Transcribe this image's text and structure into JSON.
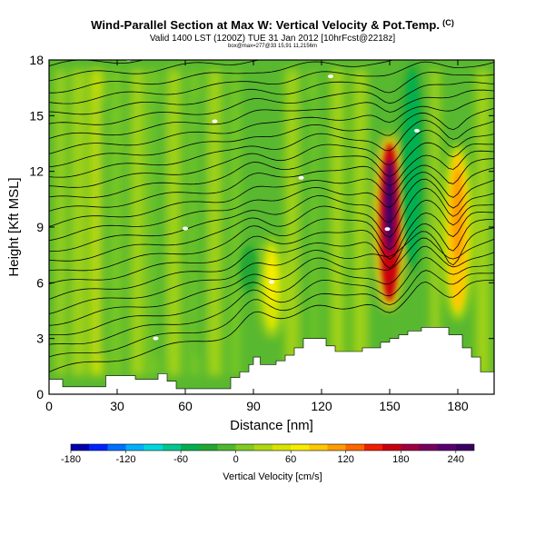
{
  "header": {
    "title": "Wind-Parallel Section at Max W: Vertical Velocity & Pot.Temp.",
    "title_mark": "(C)",
    "subtitle": "Valid 1400 LST (1200Z) TUE 31 Jan 2012 [10hrFcst@2218z]",
    "subsubtitle": "box@max=277@33 15,91 11,2156m"
  },
  "chart_data": {
    "type": "heatmap",
    "xlabel": "Distance [nm]",
    "ylabel": "Height [Kft MSL]",
    "xlim": [
      0,
      196
    ],
    "ylim": [
      0,
      18
    ],
    "xticks": [
      0,
      30,
      60,
      90,
      120,
      150,
      180
    ],
    "yticks": [
      0,
      3,
      6,
      9,
      12,
      15,
      18
    ],
    "terrain_kft": [
      [
        0,
        0.8
      ],
      [
        6,
        0.8
      ],
      [
        6,
        0.4
      ],
      [
        25,
        0.4
      ],
      [
        25,
        1.0
      ],
      [
        38,
        1.0
      ],
      [
        38,
        0.8
      ],
      [
        48,
        0.8
      ],
      [
        48,
        1.1
      ],
      [
        52,
        1.1
      ],
      [
        52,
        0.7
      ],
      [
        56,
        0.7
      ],
      [
        56,
        0.3
      ],
      [
        80,
        0.3
      ],
      [
        80,
        0.9
      ],
      [
        84,
        0.9
      ],
      [
        84,
        1.2
      ],
      [
        88,
        1.2
      ],
      [
        88,
        1.6
      ],
      [
        90,
        1.6
      ],
      [
        90,
        2.0
      ],
      [
        93,
        2.0
      ],
      [
        93,
        1.6
      ],
      [
        100,
        1.6
      ],
      [
        100,
        1.8
      ],
      [
        104,
        1.8
      ],
      [
        104,
        2.1
      ],
      [
        108,
        2.1
      ],
      [
        108,
        2.5
      ],
      [
        112,
        2.5
      ],
      [
        112,
        3.0
      ],
      [
        122,
        3.0
      ],
      [
        122,
        2.6
      ],
      [
        126,
        2.6
      ],
      [
        126,
        2.3
      ],
      [
        138,
        2.3
      ],
      [
        138,
        2.5
      ],
      [
        146,
        2.5
      ],
      [
        146,
        2.8
      ],
      [
        150,
        2.8
      ],
      [
        150,
        3.0
      ],
      [
        154,
        3.0
      ],
      [
        154,
        3.2
      ],
      [
        158,
        3.2
      ],
      [
        158,
        3.4
      ],
      [
        164,
        3.4
      ],
      [
        164,
        3.6
      ],
      [
        176,
        3.6
      ],
      [
        176,
        3.2
      ],
      [
        182,
        3.2
      ],
      [
        182,
        2.5
      ],
      [
        186,
        2.5
      ],
      [
        186,
        2.0
      ],
      [
        190,
        2.0
      ],
      [
        190,
        1.2
      ],
      [
        196,
        1.2
      ]
    ],
    "colorbar": {
      "label": "Vertical Velocity [cm/s]",
      "min": -180,
      "max": 260,
      "tick_values": [
        -180,
        -120,
        -60,
        0,
        60,
        120,
        180,
        240
      ],
      "colors": [
        "#0000b0",
        "#0022ff",
        "#0070ff",
        "#00b0ff",
        "#00d8e0",
        "#00c890",
        "#00b050",
        "#22a830",
        "#50b830",
        "#80cc20",
        "#b0d810",
        "#d8e400",
        "#f8ec00",
        "#ffc800",
        "#ff9c00",
        "#ff6600",
        "#f02000",
        "#c80010",
        "#a00040",
        "#780060",
        "#580070",
        "#3a0060"
      ]
    },
    "features": [
      {
        "type": "updraft",
        "x": 150,
        "y_range": [
          5.0,
          13.5
        ],
        "peak_cm_s": 240
      },
      {
        "type": "updraft",
        "x": 180,
        "y_range": [
          4.5,
          13.0
        ],
        "peak_cm_s": 120
      },
      {
        "type": "updraft",
        "x": 98,
        "y_range": [
          3.5,
          8.0
        ],
        "peak_cm_s": 60
      },
      {
        "type": "downdraft",
        "x": 160,
        "y_range": [
          7.0,
          17.5
        ],
        "peak_cm_s": -60
      },
      {
        "type": "downdraft",
        "x": 88,
        "y_range": [
          5.5,
          8.0
        ],
        "peak_cm_s": -30
      }
    ]
  }
}
